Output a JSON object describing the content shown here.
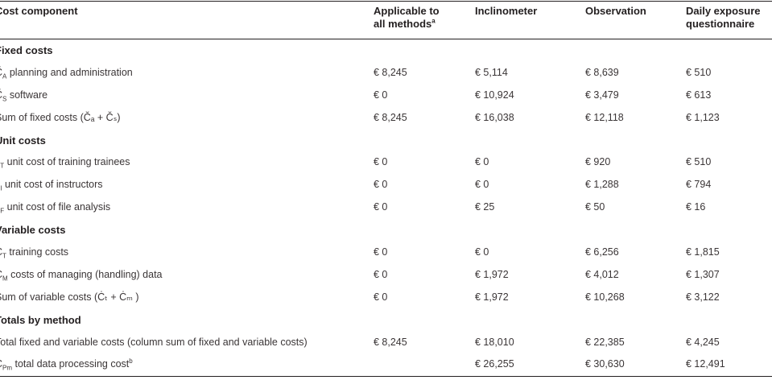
{
  "table": {
    "headers": [
      {
        "line1": "Cost component",
        "line2": "",
        "sup": ""
      },
      {
        "line1": "Applicable to",
        "line2": "all methods",
        "sup": "a"
      },
      {
        "line1": "Inclinometer",
        "line2": "",
        "sup": ""
      },
      {
        "line1": "Observation",
        "line2": "",
        "sup": ""
      },
      {
        "line1": "Daily exposure",
        "line2": "questionnaire",
        "sup": ""
      }
    ],
    "rows": [
      {
        "kind": "section",
        "label": "Fixed costs"
      },
      {
        "kind": "data",
        "symbol": "Č",
        "sub": "A",
        "label": " planning and administration",
        "values": [
          "€ 8,245",
          "€ 5,114",
          "€ 8,639",
          "€ 510"
        ]
      },
      {
        "kind": "data",
        "symbol": "Č",
        "sub": "S",
        "label": " software",
        "values": [
          "€ 0",
          "€ 10,924",
          "€ 3,479",
          "€ 613"
        ]
      },
      {
        "kind": "data",
        "symbol": "",
        "sub": "",
        "label": "Sum of fixed costs (Čₐ + Čₛ)",
        "values": [
          "€ 8,245",
          "€ 16,038",
          "€ 12,118",
          "€ 1,123"
        ]
      },
      {
        "kind": "section",
        "label": "Unit costs"
      },
      {
        "kind": "data",
        "symbol": "c",
        "sub": "T",
        "label": " unit cost of training trainees",
        "values": [
          "€ 0",
          "€ 0",
          "€ 920",
          "€ 510"
        ]
      },
      {
        "kind": "data",
        "symbol": "c",
        "sub": "I",
        "label": " unit cost of instructors",
        "values": [
          "€ 0",
          "€ 0",
          "€ 1,288",
          "€ 794"
        ]
      },
      {
        "kind": "data",
        "symbol": "c",
        "sub": "F",
        "label": " unit cost of file analysis",
        "values": [
          "€ 0",
          "€ 25",
          "€ 50",
          "€ 16"
        ]
      },
      {
        "kind": "section",
        "label": "Variable costs"
      },
      {
        "kind": "data",
        "symbol": "Ċ",
        "sub": "T",
        "label": " training costs",
        "values": [
          "€ 0",
          "€ 0",
          "€ 6,256",
          "€ 1,815"
        ]
      },
      {
        "kind": "data",
        "symbol": "Ċ",
        "sub": "M",
        "label": " costs of managing (handling) data",
        "values": [
          "€ 0",
          "€ 1,972",
          "€ 4,012",
          "€ 1,307"
        ]
      },
      {
        "kind": "data",
        "symbol": "",
        "sub": "",
        "label": "Sum of variable costs (Ċₜ + Ċₘ )",
        "values": [
          "€ 0",
          "€ 1,972",
          "€ 10,268",
          "€ 3,122"
        ]
      },
      {
        "kind": "section",
        "label": "Totals by method"
      },
      {
        "kind": "data",
        "symbol": "",
        "sub": "",
        "label": "Total fixed and variable costs (column sum of fixed and variable costs)",
        "values": [
          "€ 8,245",
          "€ 18,010",
          "€ 22,385",
          "€ 4,245"
        ]
      },
      {
        "kind": "data",
        "symbol": "C",
        "sub": "Pm",
        "label": " total data processing cost",
        "label_sup": "b",
        "values": [
          "",
          "€ 26,255",
          "€ 30,630",
          "€ 12,491"
        ]
      }
    ]
  }
}
